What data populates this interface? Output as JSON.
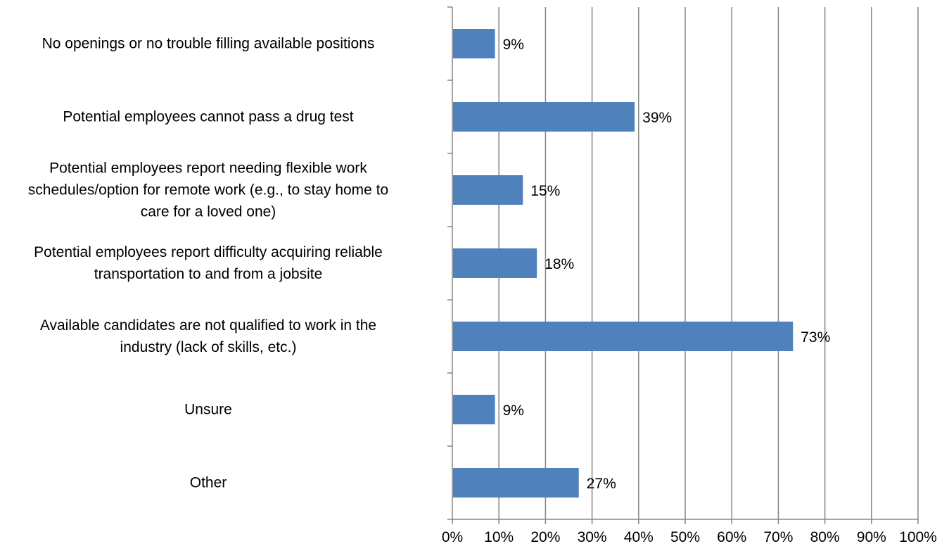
{
  "chart_data": {
    "type": "bar",
    "orientation": "horizontal",
    "categories": [
      "No openings or no trouble filling available positions",
      "Potential employees cannot pass a drug test",
      "Potential employees report needing flexible work schedules/option for remote work (e.g., to stay home to care for a loved one)",
      "Potential employees report difficulty acquiring reliable transportation to and from a jobsite",
      "Available candidates are not qualified to work in the industry (lack of skills, etc.)",
      "Unsure",
      "Other"
    ],
    "category_lines": [
      [
        "No openings or no trouble filling available positions"
      ],
      [
        "Potential employees cannot pass a drug test"
      ],
      [
        "Potential employees report needing flexible work",
        "schedules/option for remote work (e.g., to stay home to",
        "care for a loved one)"
      ],
      [
        "Potential employees report difficulty acquiring reliable",
        "transportation to and from a jobsite"
      ],
      [
        "Available candidates are not qualified to work in the",
        "industry (lack of skills, etc.)"
      ],
      [
        "Unsure"
      ],
      [
        "Other"
      ]
    ],
    "values": [
      9,
      39,
      15,
      18,
      73,
      9,
      27
    ],
    "data_labels": [
      "9%",
      "39%",
      "15%",
      "18%",
      "73%",
      "9%",
      "27%"
    ],
    "x_ticks": [
      "0%",
      "10%",
      "20%",
      "30%",
      "40%",
      "50%",
      "60%",
      "70%",
      "80%",
      "90%",
      "100%"
    ],
    "xlim": [
      0,
      100
    ],
    "grid": "vertical",
    "legend": "none",
    "colors": {
      "bar": "#4f81bd",
      "grid": "#868686",
      "axis": "#868686"
    }
  }
}
